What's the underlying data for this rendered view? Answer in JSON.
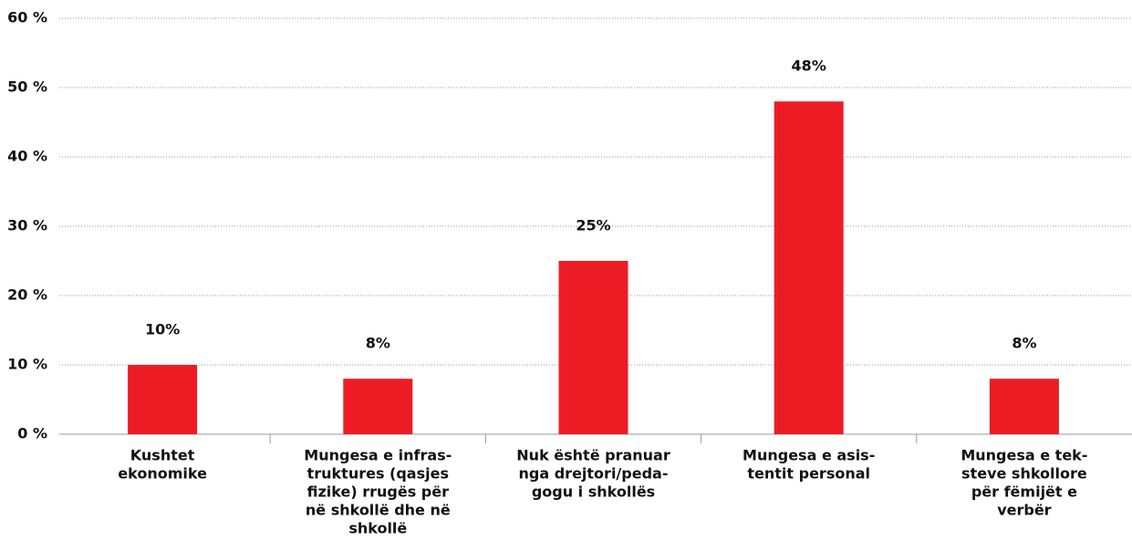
{
  "chart_data": {
    "type": "bar",
    "categories": [
      [
        "Kushtet",
        "ekonomike"
      ],
      [
        "Mungesa e infras-",
        "truktures (qasjes",
        "fizike) rrugës për",
        "në shkollë dhe në",
        "shkollë"
      ],
      [
        "Nuk është pranuar",
        "nga drejtori/peda-",
        "gogu i shkollës"
      ],
      [
        "Mungesa e asis-",
        "tentit personal"
      ],
      [
        "Mungesa e tek-",
        "steve shkollore",
        "për fëmijët e",
        "verbër"
      ]
    ],
    "values": [
      10,
      8,
      25,
      48,
      8
    ],
    "value_labels": [
      "10%",
      "8%",
      "25%",
      "48%",
      "8%"
    ],
    "color": "#ed1c24",
    "ylim": [
      0,
      60
    ],
    "yticks": [
      {
        "value": 0,
        "label": "0 %"
      },
      {
        "value": 10,
        "label": "10 %"
      },
      {
        "value": 20,
        "label": "20 %"
      },
      {
        "value": 30,
        "label": "30 %"
      },
      {
        "value": 40,
        "label": "40 %"
      },
      {
        "value": 50,
        "label": "50 %"
      },
      {
        "value": 60,
        "label": "60 %"
      }
    ],
    "grid": true
  }
}
